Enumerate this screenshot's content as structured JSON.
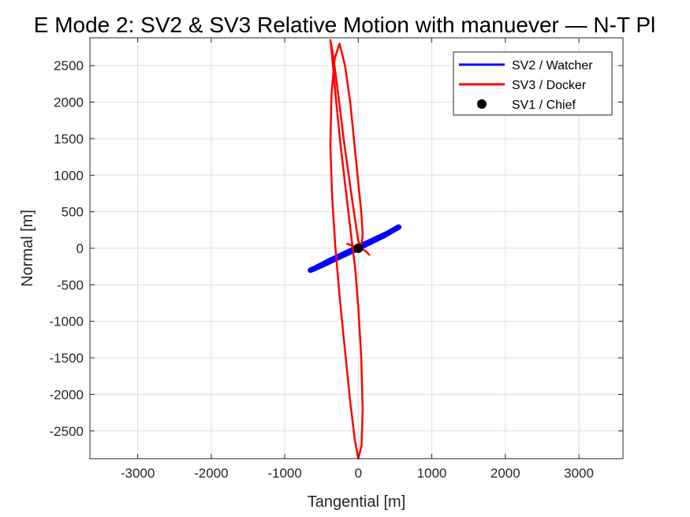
{
  "chart_data": {
    "type": "line",
    "title": "E Mode 2: SV2 & SV3 Relative Motion with manuever — N-T Pl",
    "xlabel": "Tangential [m]",
    "ylabel": "Normal [m]",
    "xlim": [
      -3650,
      3600
    ],
    "ylim": [
      -2880,
      2880
    ],
    "xticks": [
      -3000,
      -2000,
      -1000,
      0,
      1000,
      2000,
      3000
    ],
    "yticks": [
      -2500,
      -2000,
      -1500,
      -1000,
      -500,
      0,
      500,
      1000,
      1500,
      2000,
      2500
    ],
    "grid": true,
    "legend_position": "top-right",
    "series": [
      {
        "name": "SV2 / Watcher",
        "color": "#0000ff",
        "kind": "line",
        "x": [
          -650,
          -500,
          -300,
          -100,
          0,
          150,
          350,
          550,
          400,
          200,
          0,
          -200,
          -400,
          -600
        ],
        "y": [
          -300,
          -235,
          -140,
          -45,
          0,
          75,
          175,
          290,
          205,
          110,
          15,
          -80,
          -175,
          -280
        ]
      },
      {
        "name": "SV3 / Docker",
        "color": "#ff0000",
        "kind": "line",
        "x": [
          150,
          100,
          40,
          0,
          -60,
          -130,
          -200,
          -260,
          -310,
          -345,
          -370,
          -380,
          -370,
          -345,
          -300,
          -240,
          -170,
          -100,
          -40,
          0,
          40,
          60,
          45,
          0,
          -50,
          -110,
          -180,
          -250,
          -310,
          -355,
          -380,
          -365,
          -320,
          -255,
          -180,
          -110,
          -50,
          0,
          40,
          60,
          50,
          0,
          -70,
          -150
        ],
        "y": [
          -90,
          -40,
          0,
          100,
          500,
          1000,
          1500,
          2000,
          2400,
          2650,
          2800,
          2850,
          2780,
          2500,
          2000,
          1400,
          800,
          200,
          -300,
          -800,
          -1500,
          -2200,
          -2700,
          -2880,
          -2600,
          -2100,
          -1400,
          -700,
          0,
          700,
          1400,
          2100,
          2600,
          2800,
          2500,
          2000,
          1400,
          900,
          500,
          200,
          80,
          0,
          30,
          60
        ]
      },
      {
        "name": "SV1 / Chief",
        "color": "#000000",
        "kind": "marker",
        "x": [
          0
        ],
        "y": [
          0
        ]
      }
    ]
  }
}
